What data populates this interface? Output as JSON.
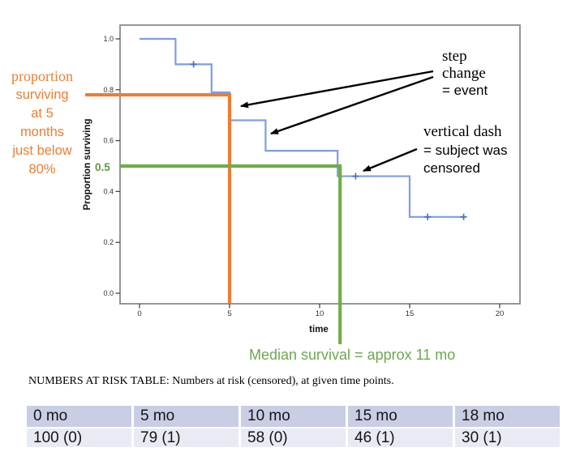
{
  "colors": {
    "curve_blue": "#7E9CE6",
    "censor_blue": "#4472C4",
    "orange": "#ED7D31",
    "green": "#70AD47",
    "frame_gray": "#8a8a8a",
    "tick_gray": "#3a3a3a",
    "arrow_black": "#000000",
    "table_header_bg": "#C9CEE5",
    "table_row_bg": "#E8EBF4"
  },
  "chart_data": {
    "type": "line",
    "subtype": "kaplan-meier-step-curve",
    "xlabel": "time",
    "ylabel": "Proportion surviving",
    "x_ticks": [
      0,
      5,
      10,
      15,
      20
    ],
    "y_ticks": [
      0.0,
      0.2,
      0.4,
      0.6,
      0.8,
      1.0
    ],
    "xlim": [
      -1.1,
      21.1
    ],
    "ylim": [
      -0.04,
      1.06
    ],
    "grid": false,
    "legend": false,
    "series": [
      {
        "name": "survival",
        "steps": [
          [
            0,
            1.0
          ],
          [
            2,
            0.9
          ],
          [
            4,
            0.79
          ],
          [
            5,
            0.68
          ],
          [
            7,
            0.56
          ],
          [
            11,
            0.46
          ],
          [
            15,
            0.3
          ]
        ],
        "end_time": 18
      }
    ],
    "censored_points": [
      [
        3,
        0.9
      ],
      [
        12,
        0.46
      ],
      [
        16,
        0.3
      ],
      [
        18,
        0.3
      ]
    ],
    "reference_lines": [
      {
        "color_key": "orange",
        "proportion": 0.78,
        "time": 5
      },
      {
        "color_key": "green",
        "proportion": 0.5,
        "time": 11
      }
    ]
  },
  "annotations": {
    "proportion_note": {
      "lines": [
        "proportion",
        "surviving",
        "at 5",
        "months",
        "just below",
        "80%"
      ]
    },
    "half_label": "0.5",
    "step_change_note": {
      "lines": [
        "step",
        "change",
        "= event"
      ]
    },
    "censored_note": {
      "lines": [
        "vertical dash",
        "= subject was",
        "censored"
      ]
    },
    "median_note": "Median survival = approx 11 mo"
  },
  "risk_table": {
    "title": "NUMBERS AT RISK TABLE: Numbers at risk (censored), at given time points.",
    "headers": [
      "0 mo",
      "5 mo",
      "10 mo",
      "15 mo",
      "18 mo"
    ],
    "values": [
      "100 (0)",
      "79 (1)",
      "58 (0)",
      "46 (1)",
      "30 (1)"
    ]
  }
}
